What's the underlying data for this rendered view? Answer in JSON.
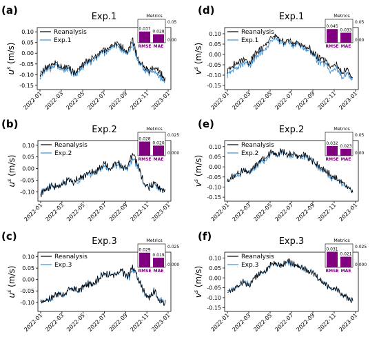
{
  "figure": {
    "x_tick_labels": [
      "2022-01",
      "2022-03",
      "2022-05",
      "2022-07",
      "2022-09",
      "2022-11",
      "2023-01"
    ],
    "legend_reference": "Reanalysis",
    "metrics_title": "Metrics",
    "metric_names": [
      "RMSE",
      "MAE"
    ],
    "colors": {
      "reanalysis": "#000000",
      "experiment": "#3a8ed6",
      "metric_bar": "#800080"
    }
  },
  "chart_data": [
    {
      "type": "line",
      "panel_label": "(a)",
      "title": "Exp.1",
      "ylabel": "u^s (m/s)",
      "ylim": [
        -0.17,
        0.12
      ],
      "yticks": [
        "0.10",
        "0.05",
        "0.00",
        "-0.05",
        "-0.10",
        "-0.15"
      ],
      "ytick_values": [
        0.1,
        0.05,
        0,
        -0.05,
        -0.1,
        -0.15
      ],
      "series": [
        {
          "name": "Reanalysis",
          "values": [
            -0.1,
            -0.07,
            -0.06,
            -0.04,
            -0.07,
            -0.06,
            -0.09,
            -0.08,
            -0.05,
            -0.03,
            -0.02,
            0.0,
            0.02,
            0.04,
            0.05,
            0.03,
            0.0,
            0.06,
            -0.03,
            -0.06,
            -0.08,
            -0.06,
            -0.09,
            -0.12
          ]
        },
        {
          "name": "Exp.1",
          "values": [
            -0.11,
            -0.08,
            -0.07,
            -0.05,
            -0.08,
            -0.07,
            -0.1,
            -0.09,
            -0.06,
            -0.04,
            -0.03,
            -0.01,
            0.01,
            0.03,
            0.04,
            0.02,
            -0.01,
            0.04,
            -0.04,
            -0.07,
            -0.09,
            -0.08,
            -0.11,
            -0.13
          ]
        }
      ],
      "metrics": {
        "RMSE": "0.037",
        "MAE": "0.028"
      },
      "metrics_values": [
        0.037,
        0.028
      ],
      "metrics_ylim": [
        0,
        0.05
      ],
      "metrics_yticks": [
        "0.05",
        "0.00"
      ]
    },
    {
      "type": "line",
      "panel_label": "(b)",
      "title": "Exp.2",
      "ylabel": "u^s (m/s)",
      "ylim": [
        -0.14,
        0.12
      ],
      "yticks": [
        "0.10",
        "0.05",
        "0.00",
        "-0.05",
        "-0.10"
      ],
      "ytick_values": [
        0.1,
        0.05,
        0,
        -0.05,
        -0.1
      ],
      "series": [
        {
          "name": "Reanalysis",
          "values": [
            -0.11,
            -0.09,
            -0.07,
            -0.08,
            -0.07,
            -0.05,
            -0.06,
            -0.04,
            -0.03,
            -0.01,
            -0.02,
            0.01,
            0.02,
            0.0,
            0.03,
            0.01,
            0.0,
            0.07,
            0.01,
            -0.06,
            -0.08,
            -0.06,
            -0.09,
            -0.1
          ]
        },
        {
          "name": "Exp.2",
          "values": [
            -0.1,
            -0.09,
            -0.07,
            -0.08,
            -0.07,
            -0.05,
            -0.06,
            -0.05,
            -0.03,
            -0.02,
            -0.02,
            0.0,
            0.01,
            0.0,
            0.02,
            0.01,
            -0.01,
            0.05,
            0.0,
            -0.06,
            -0.08,
            -0.07,
            -0.09,
            -0.1
          ]
        }
      ],
      "metrics": {
        "RMSE": "0.028",
        "MAE": "0.020"
      },
      "metrics_values": [
        0.028,
        0.02
      ],
      "metrics_ylim": [
        0,
        0.03
      ],
      "metrics_yticks": [
        "0.025",
        "0.000"
      ]
    },
    {
      "type": "line",
      "panel_label": "(c)",
      "title": "Exp.3",
      "ylabel": "u^s (m/s)",
      "ylim": [
        -0.14,
        0.12
      ],
      "yticks": [
        "0.10",
        "0.05",
        "0.00",
        "-0.05",
        "-0.10"
      ],
      "ytick_values": [
        0.1,
        0.05,
        0,
        -0.05,
        -0.1
      ],
      "series": [
        {
          "name": "Reanalysis",
          "values": [
            -0.1,
            -0.09,
            -0.08,
            -0.06,
            -0.07,
            -0.05,
            -0.04,
            -0.05,
            -0.03,
            -0.02,
            -0.01,
            0.01,
            0.03,
            0.02,
            0.02,
            0.04,
            0.01,
            0.06,
            0.0,
            -0.05,
            -0.08,
            -0.05,
            -0.1,
            -0.1
          ]
        },
        {
          "name": "Exp.3",
          "values": [
            -0.1,
            -0.09,
            -0.08,
            -0.06,
            -0.07,
            -0.05,
            -0.04,
            -0.05,
            -0.03,
            -0.02,
            -0.01,
            0.01,
            0.03,
            0.02,
            0.02,
            0.04,
            0.0,
            0.05,
            0.0,
            -0.05,
            -0.08,
            -0.05,
            -0.09,
            -0.1
          ]
        }
      ],
      "metrics": {
        "RMSE": "0.029",
        "MAE": "0.019"
      },
      "metrics_values": [
        0.029,
        0.019
      ],
      "metrics_ylim": [
        0,
        0.03
      ],
      "metrics_yticks": [
        "0.025",
        "0.000"
      ]
    },
    {
      "type": "line",
      "panel_label": "(d)",
      "title": "Exp.1",
      "ylabel": "v^s (m/s)",
      "ylim": [
        -0.17,
        0.13
      ],
      "yticks": [
        "0.10",
        "0.05",
        "0.00",
        "-0.05",
        "-0.10",
        "-0.15"
      ],
      "ytick_values": [
        0.1,
        0.05,
        0,
        -0.05,
        -0.1,
        -0.15
      ],
      "series": [
        {
          "name": "Reanalysis",
          "values": [
            -0.08,
            -0.05,
            -0.04,
            -0.02,
            -0.04,
            0.0,
            0.02,
            0.05,
            0.08,
            0.09,
            0.06,
            0.07,
            0.05,
            0.06,
            0.04,
            0.03,
            0.0,
            -0.02,
            -0.03,
            -0.06,
            -0.05,
            -0.09,
            -0.07,
            -0.12
          ]
        },
        {
          "name": "Exp.1",
          "values": [
            -0.1,
            -0.07,
            -0.06,
            -0.04,
            -0.05,
            -0.02,
            0.0,
            0.03,
            0.06,
            0.08,
            0.05,
            0.06,
            0.04,
            0.05,
            0.03,
            0.02,
            -0.01,
            -0.04,
            -0.05,
            -0.08,
            -0.07,
            -0.11,
            -0.09,
            -0.13
          ]
        }
      ],
      "metrics": {
        "RMSE": "0.045",
        "MAE": "0.033"
      },
      "metrics_values": [
        0.045,
        0.033
      ],
      "metrics_ylim": [
        0,
        0.05
      ],
      "metrics_yticks": [
        "0.05",
        "0.00"
      ]
    },
    {
      "type": "line",
      "panel_label": "(e)",
      "title": "Exp.2",
      "ylabel": "v^s (m/s)",
      "ylim": [
        -0.17,
        0.13
      ],
      "yticks": [
        "0.10",
        "0.05",
        "0.00",
        "-0.05",
        "-0.10",
        "-0.15"
      ],
      "ytick_values": [
        0.1,
        0.05,
        0,
        -0.05,
        -0.1,
        -0.15
      ],
      "series": [
        {
          "name": "Reanalysis",
          "values": [
            -0.07,
            -0.05,
            -0.03,
            -0.02,
            -0.03,
            0.0,
            0.03,
            0.05,
            0.07,
            0.06,
            0.08,
            0.06,
            0.07,
            0.05,
            0.06,
            0.04,
            0.02,
            0.0,
            -0.02,
            -0.04,
            -0.06,
            -0.07,
            -0.1,
            -0.13
          ]
        },
        {
          "name": "Exp.2",
          "values": [
            -0.07,
            -0.05,
            -0.04,
            -0.02,
            -0.03,
            -0.01,
            0.02,
            0.04,
            0.06,
            0.06,
            0.07,
            0.06,
            0.06,
            0.05,
            0.05,
            0.04,
            0.02,
            -0.01,
            -0.02,
            -0.05,
            -0.06,
            -0.08,
            -0.1,
            -0.13
          ]
        }
      ],
      "metrics": {
        "RMSE": "0.032",
        "MAE": "0.023"
      },
      "metrics_values": [
        0.032,
        0.023
      ],
      "metrics_ylim": [
        0,
        0.05
      ],
      "metrics_yticks": [
        "0.05",
        "0.00"
      ]
    },
    {
      "type": "line",
      "panel_label": "(f)",
      "title": "Exp.3",
      "ylabel": "v^s (m/s)",
      "ylim": [
        -0.17,
        0.13
      ],
      "yticks": [
        "0.10",
        "0.05",
        "0.00",
        "-0.05",
        "-0.10",
        "-0.15"
      ],
      "ytick_values": [
        0.1,
        0.05,
        0,
        -0.05,
        -0.1,
        -0.15
      ],
      "series": [
        {
          "name": "Reanalysis",
          "values": [
            -0.08,
            -0.06,
            -0.04,
            -0.02,
            -0.04,
            0.0,
            0.02,
            0.04,
            0.07,
            0.08,
            0.06,
            0.09,
            0.07,
            0.06,
            0.05,
            0.03,
            0.02,
            -0.01,
            -0.03,
            -0.05,
            -0.06,
            -0.08,
            -0.1,
            -0.12
          ]
        },
        {
          "name": "Exp.3",
          "values": [
            -0.07,
            -0.06,
            -0.04,
            -0.02,
            -0.03,
            0.0,
            0.02,
            0.04,
            0.06,
            0.08,
            0.06,
            0.08,
            0.07,
            0.06,
            0.05,
            0.03,
            0.02,
            -0.01,
            -0.03,
            -0.05,
            -0.06,
            -0.08,
            -0.1,
            -0.12
          ]
        }
      ],
      "metrics": {
        "RMSE": "0.031",
        "MAE": "0.021"
      },
      "metrics_values": [
        0.031,
        0.021
      ],
      "metrics_ylim": [
        0,
        0.03
      ],
      "metrics_yticks": [
        "0.025",
        "0.000"
      ]
    }
  ]
}
